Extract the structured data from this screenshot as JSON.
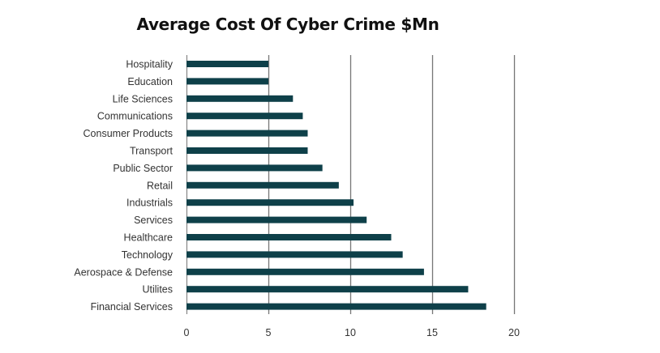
{
  "chart_data": {
    "type": "bar",
    "orientation": "horizontal",
    "title": "Average Cost Of Cyber Crime $Mn",
    "xlabel": "",
    "ylabel": "",
    "categories": [
      "Hospitality",
      "Education",
      "Life Sciences",
      "Communications",
      "Consumer Products",
      "Transport",
      "Public Sector",
      "Retail",
      "Industrials",
      "Services",
      "Healthcare",
      "Technology",
      "Aerospace & Defense",
      "Utilites",
      "Financial Services"
    ],
    "values": [
      5.0,
      5.0,
      6.5,
      7.1,
      7.4,
      7.4,
      8.3,
      9.3,
      10.2,
      11.0,
      12.5,
      13.2,
      14.5,
      17.2,
      18.3
    ],
    "xlim": [
      0,
      20
    ],
    "xticks": [
      0,
      5,
      10,
      15,
      20
    ],
    "grid": "vertical",
    "legend": "none",
    "colors": {
      "bar": "#0e4049",
      "grid": "#777777",
      "axis": "#777777",
      "text": "#333333",
      "title": "#111111"
    }
  }
}
